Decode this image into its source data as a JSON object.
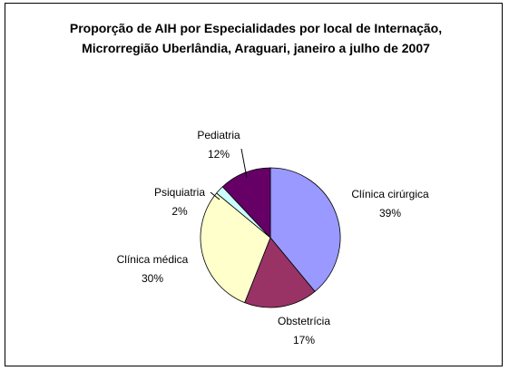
{
  "chart_data": {
    "type": "pie",
    "title": "Proporção de AIH por Especialidades por local de Internação, Microrregião Uberlândia, Araguari, janeiro a julho de 2007",
    "categories": [
      "Clínica cirúrgica",
      "Obstetrícia",
      "Clínica médica",
      "Psiquiatria",
      "Pediatria"
    ],
    "values": [
      39,
      17,
      30,
      2,
      12
    ],
    "value_labels": [
      "39%",
      "17%",
      "30%",
      "2%",
      "12%"
    ],
    "colors": [
      "#9999ff",
      "#993366",
      "#ffffcc",
      "#ccffff",
      "#660066"
    ]
  }
}
